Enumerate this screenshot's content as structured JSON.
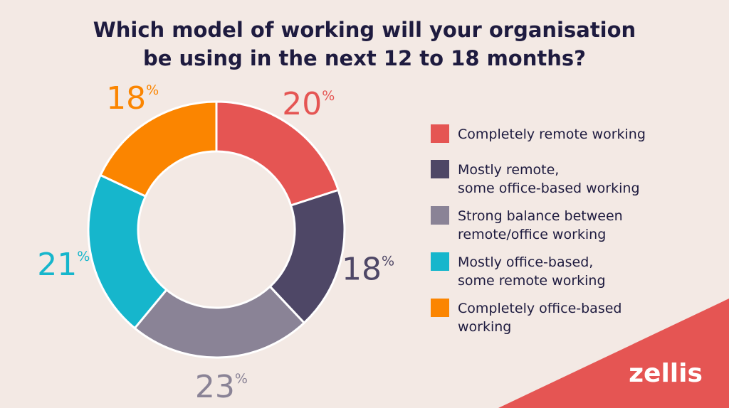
{
  "chart_data": {
    "type": "donut",
    "title": "Which model of working will your organisation\nbe using in the next 12 to 18 months?",
    "categories": [
      "Completely remote working",
      "Mostly remote,\nsome office-based working",
      "Strong balance between\nremote/office working",
      "Mostly office-based,\nsome remote working",
      "Completely office-based\nworking"
    ],
    "values": [
      20,
      18,
      23,
      21,
      18
    ],
    "value_unit": "%",
    "colors": [
      "#e55553",
      "#4e4766",
      "#8a8396",
      "#16b6cc",
      "#fb8500"
    ],
    "legend": "right",
    "logo": "zellis"
  }
}
